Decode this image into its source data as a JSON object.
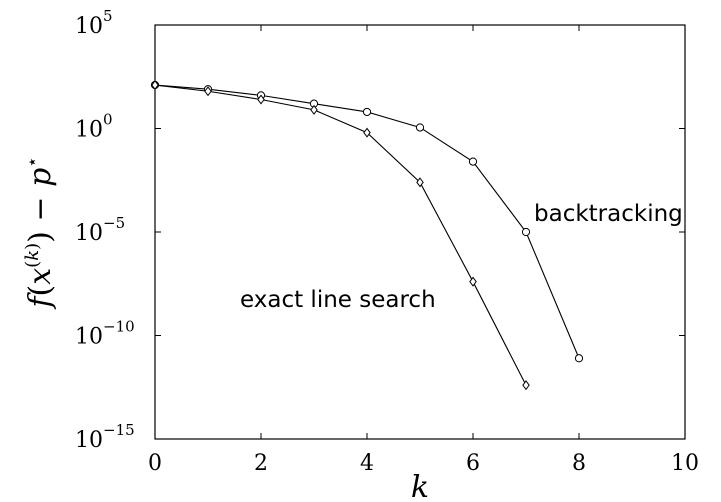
{
  "chart_data": {
    "type": "line",
    "xlabel": "k",
    "ylabel": "f(x^(k)) − p*",
    "xlim": [
      0,
      10
    ],
    "ylim_exp": [
      -15,
      5
    ],
    "y_scale": "log",
    "grid": false,
    "x_ticks": [
      "0",
      "2",
      "4",
      "6",
      "8",
      "10"
    ],
    "y_ticks": [
      {
        "base": "10",
        "exp": "5"
      },
      {
        "base": "10",
        "exp": "0"
      },
      {
        "base": "10",
        "exp": "−5"
      },
      {
        "base": "10",
        "exp": "−10"
      },
      {
        "base": "10",
        "exp": "−15"
      }
    ],
    "series": [
      {
        "name": "backtracking",
        "marker": "circle",
        "x": [
          0,
          1,
          2,
          3,
          4,
          5,
          6,
          7,
          8
        ],
        "log10_y": [
          2.1,
          1.9,
          1.6,
          1.2,
          0.8,
          0.05,
          -1.6,
          -5.0,
          -11.1
        ]
      },
      {
        "name": "exact line search",
        "marker": "diamond",
        "x": [
          0,
          1,
          2,
          3,
          4,
          5,
          6,
          7
        ],
        "log10_y": [
          2.1,
          1.8,
          1.4,
          0.9,
          -0.2,
          -2.6,
          -7.4,
          -12.4
        ]
      }
    ],
    "annotations": [
      {
        "text": "backtracking",
        "series": "backtracking"
      },
      {
        "text": "exact line search",
        "series": "exact line search"
      }
    ]
  }
}
